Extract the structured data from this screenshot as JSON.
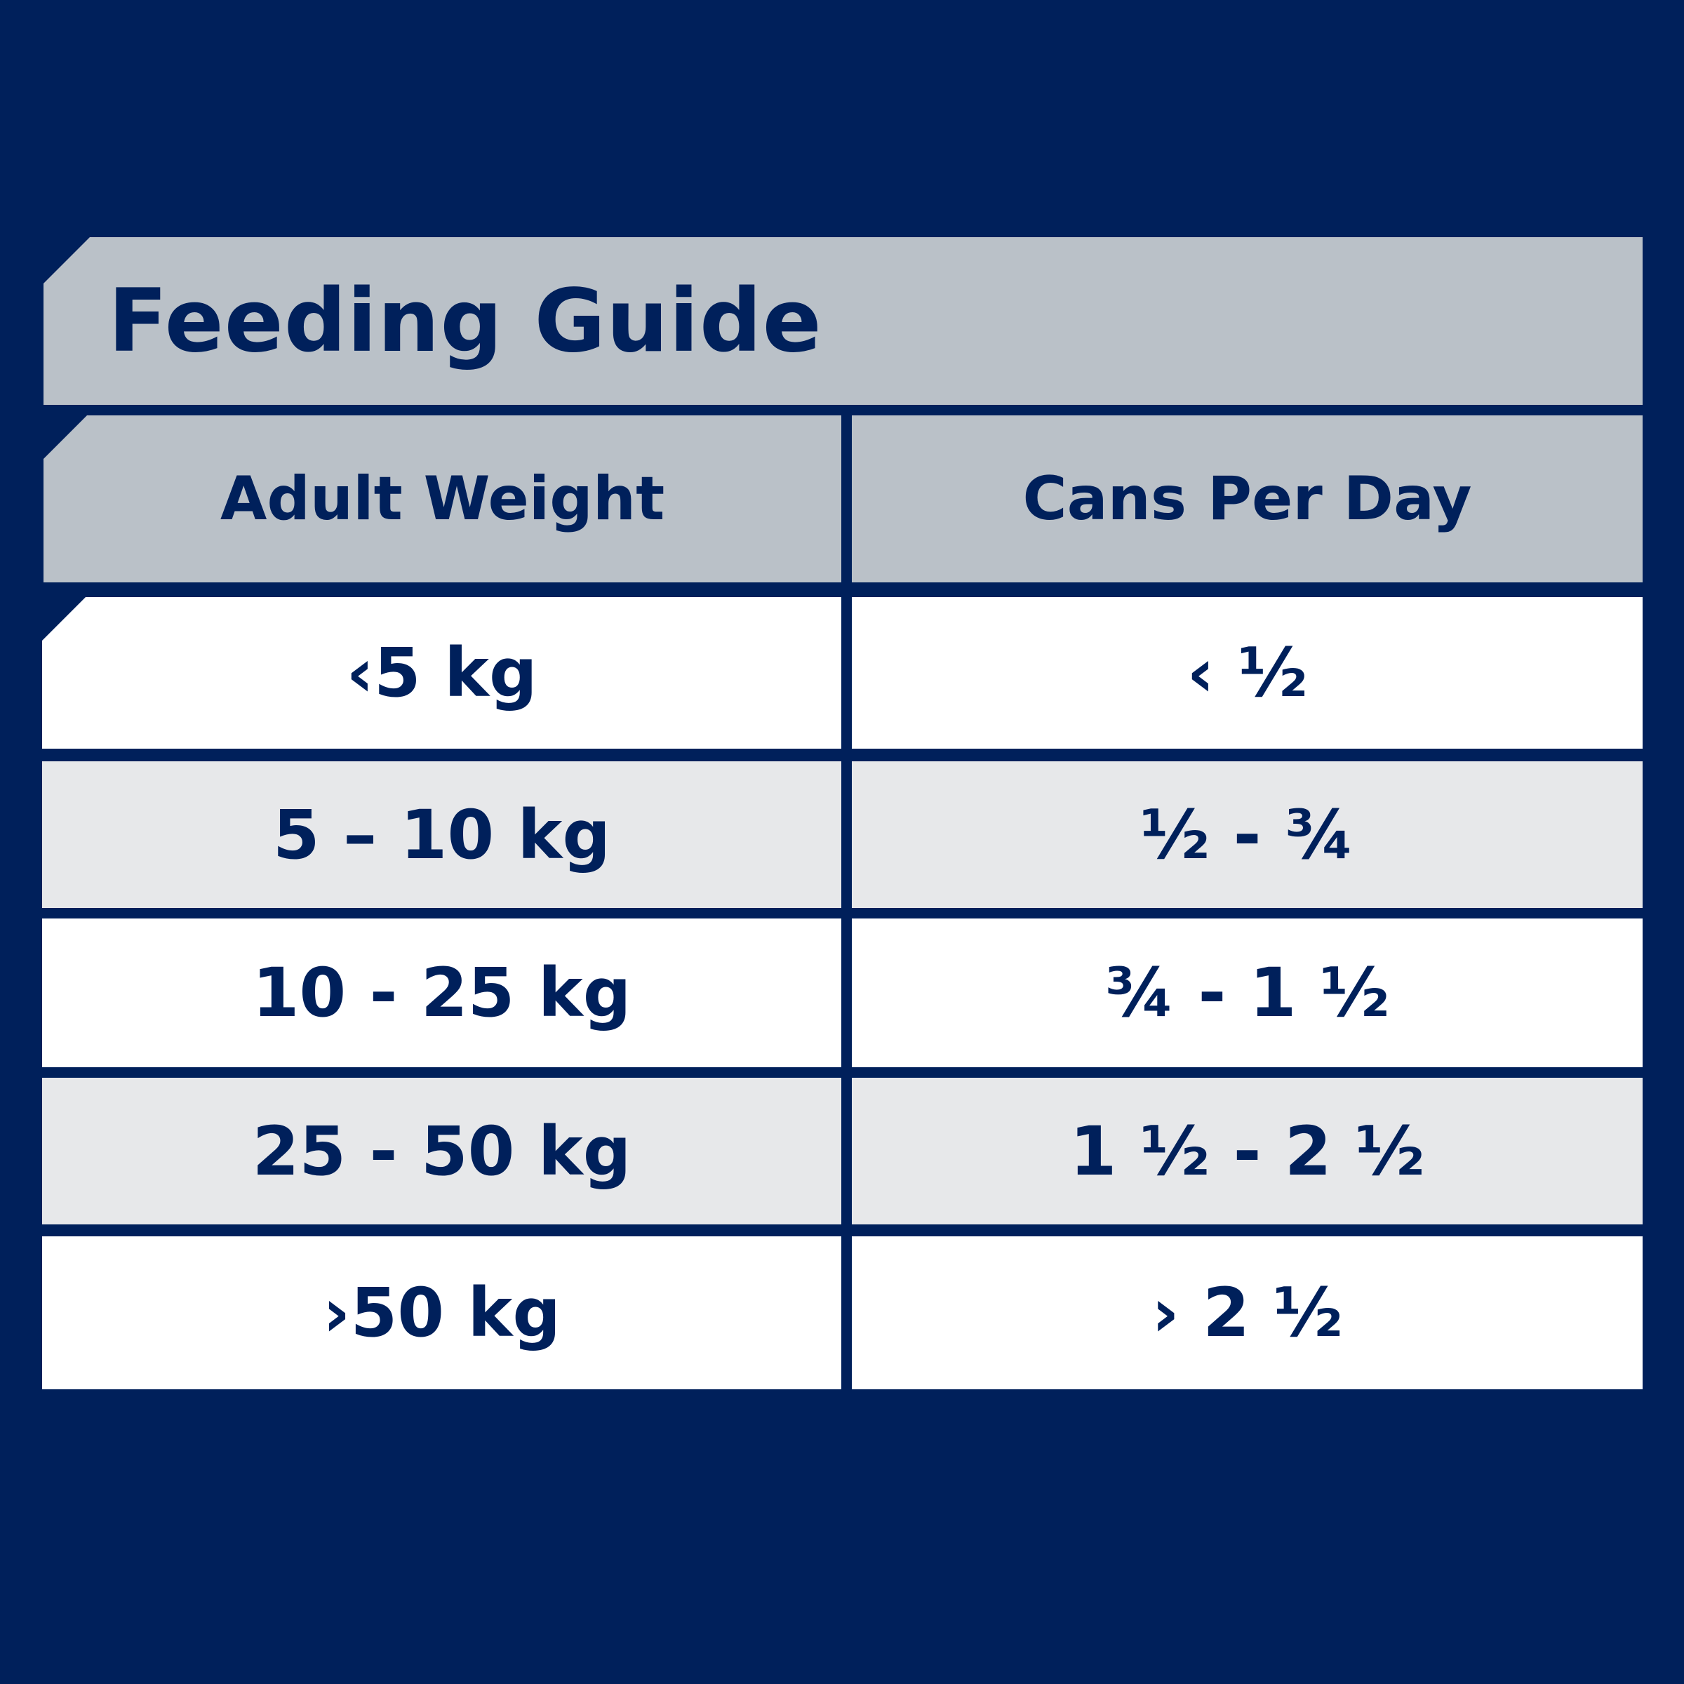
{
  "title": "Feeding Guide",
  "table": {
    "headers": [
      "Adult Weight",
      "Cans Per Day"
    ],
    "rows": [
      {
        "weight": "‹5 kg",
        "cans": "‹ ½"
      },
      {
        "weight": "5 – 10 kg",
        "cans": "½ - ¾"
      },
      {
        "weight": "10 - 25 kg",
        "cans": "¾ - 1 ½"
      },
      {
        "weight": "25 - 50 kg",
        "cans": "1 ½ - 2 ½"
      },
      {
        "weight": "›50 kg",
        "cans": "› 2 ½"
      }
    ]
  },
  "colors": {
    "background": "#00205b",
    "header_fill": "#bac1c8",
    "row_white": "#ffffff",
    "row_grey": "#e7e8ea",
    "text": "#00205b"
  }
}
